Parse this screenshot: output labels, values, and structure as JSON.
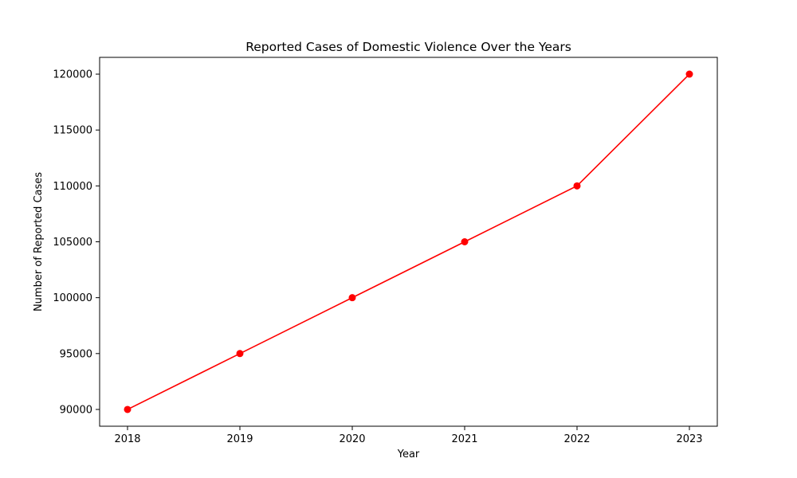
{
  "chart_data": {
    "type": "line",
    "title": "Reported Cases of Domestic Violence Over the Years",
    "xlabel": "Year",
    "ylabel": "Number of Reported Cases",
    "x": [
      "2018",
      "2019",
      "2020",
      "2021",
      "2022",
      "2023"
    ],
    "series": [
      {
        "values": [
          90000,
          95000,
          100000,
          105000,
          110000,
          120000
        ],
        "color": "#ff0000",
        "marker": "circle"
      }
    ],
    "y_ticks": [
      "90000",
      "95000",
      "100000",
      "105000",
      "110000",
      "115000",
      "120000"
    ],
    "ylim": [
      88500,
      121500
    ],
    "grid": false,
    "legend": false
  }
}
